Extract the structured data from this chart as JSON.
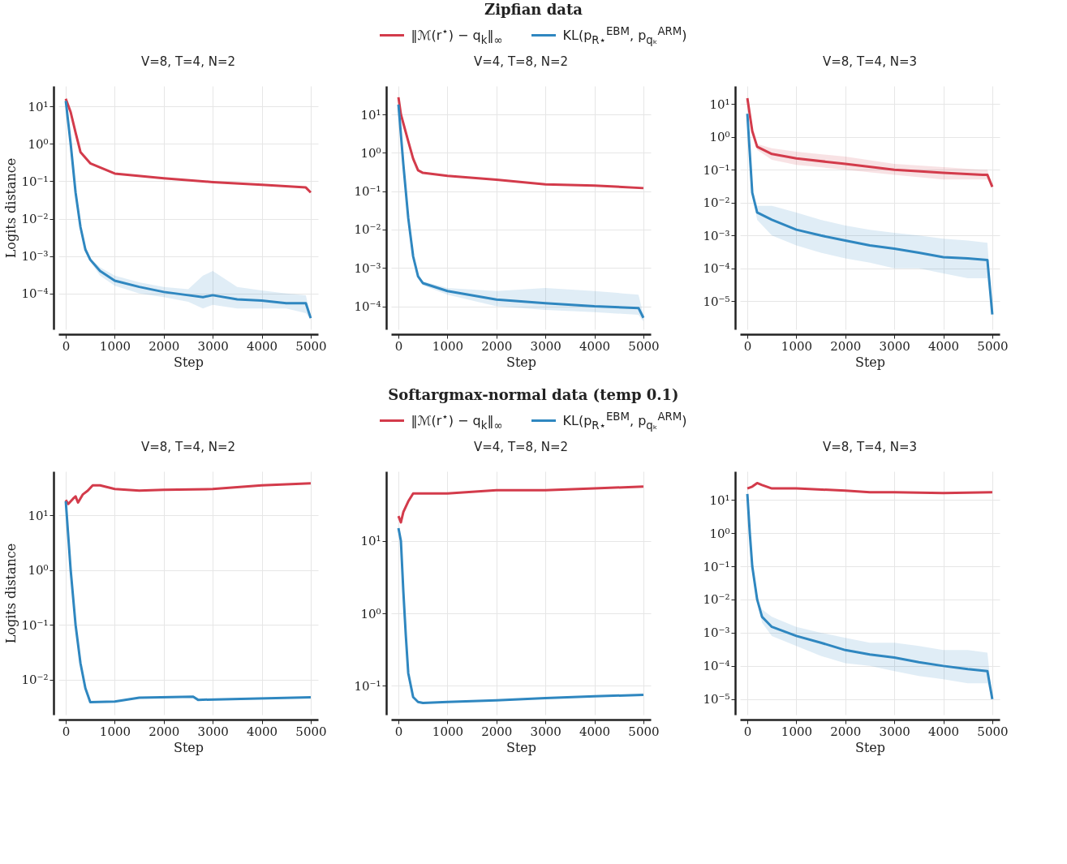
{
  "chart_data": [
    {
      "type": "line",
      "title": "V=8, T=4, N=2",
      "annotations": [
        "Zipfian data"
      ],
      "xlabel": "Step",
      "ylabel": "Logits distance",
      "log": "y",
      "grid": true,
      "legend": "top",
      "xlim": [
        -150,
        5150
      ],
      "xticks": [
        0,
        1000,
        2000,
        3000,
        4000,
        5000
      ],
      "ylim": [
        1.1e-05,
        35
      ],
      "yticks": [
        {
          "value": 10,
          "label": "10¹"
        },
        {
          "value": 1,
          "label": "10⁰"
        },
        {
          "value": 0.1,
          "label": "10⁻¹"
        },
        {
          "value": 0.01,
          "label": "10⁻²"
        },
        {
          "value": 0.001,
          "label": "10⁻³"
        },
        {
          "value": 0.0001,
          "label": "10⁻⁴"
        }
      ],
      "series": [
        {
          "name": "‖ℳ(r$^{⋆}$) − q$_{k}$‖$_{∞}$",
          "color": "#d33b4b",
          "x": [
            0,
            100,
            200,
            300,
            500,
            1000,
            2000,
            3000,
            4000,
            4900,
            5000
          ],
          "values": [
            16,
            7,
            2,
            0.6,
            0.3,
            0.16,
            0.12,
            0.095,
            0.08,
            0.068,
            0.05
          ]
        },
        {
          "name": "KL(p$_{R⋆}$$^{EBM}$, p$_{qₖ}$$^{ARM}$)",
          "color": "#2f87c0",
          "x": [
            0,
            100,
            200,
            300,
            400,
            500,
            700,
            1000,
            1500,
            2000,
            2500,
            2800,
            3000,
            3500,
            4000,
            4500,
            4900,
            5000
          ],
          "values": [
            14,
            1,
            0.05,
            0.006,
            0.0015,
            0.0008,
            0.0004,
            0.00022,
            0.00015,
            0.00011,
            9e-05,
            8e-05,
            9e-05,
            7e-05,
            6.5e-05,
            5.5e-05,
            5.5e-05,
            2.2e-05
          ],
          "lower": [
            14,
            1,
            0.05,
            0.006,
            0.0015,
            0.0007,
            0.0003,
            0.00016,
            0.0001,
            8e-05,
            6e-05,
            4e-05,
            5e-05,
            4e-05,
            4e-05,
            4e-05,
            3e-05,
            2e-05
          ],
          "upper": [
            14,
            1,
            0.05,
            0.006,
            0.0015,
            0.0009,
            0.0005,
            0.0003,
            0.0002,
            0.00015,
            0.00013,
            0.0003,
            0.0004,
            0.00015,
            0.00012,
            0.0001,
            9e-05,
            2.5e-05
          ]
        }
      ]
    },
    {
      "type": "line",
      "title": "V=4, T=8, N=2",
      "xlabel": "Step",
      "log": "y",
      "grid": true,
      "xlim": [
        -150,
        5150
      ],
      "xticks": [
        0,
        1000,
        2000,
        3000,
        4000,
        5000
      ],
      "ylim": [
        2.5e-05,
        55
      ],
      "yticks": [
        {
          "value": 10,
          "label": "10¹"
        },
        {
          "value": 1,
          "label": "10⁰"
        },
        {
          "value": 0.1,
          "label": "10⁻¹"
        },
        {
          "value": 0.01,
          "label": "10⁻²"
        },
        {
          "value": 0.001,
          "label": "10⁻³"
        },
        {
          "value": 0.0001,
          "label": "10⁻⁴"
        }
      ],
      "series": [
        {
          "color": "#d33b4b",
          "x": [
            0,
            50,
            200,
            300,
            400,
            500,
            1000,
            2000,
            3000,
            4000,
            5000
          ],
          "values": [
            28,
            10,
            2,
            0.7,
            0.35,
            0.3,
            0.25,
            0.2,
            0.15,
            0.14,
            0.12
          ]
        },
        {
          "color": "#2f87c0",
          "x": [
            0,
            100,
            200,
            300,
            400,
            500,
            1000,
            2000,
            3000,
            4000,
            4900,
            5000
          ],
          "values": [
            18,
            0.5,
            0.02,
            0.002,
            0.0006,
            0.0004,
            0.00025,
            0.00015,
            0.00012,
            0.0001,
            9e-05,
            5e-05
          ],
          "lower": [
            18,
            0.5,
            0.02,
            0.002,
            0.0006,
            0.00035,
            0.0002,
            0.0001,
            8e-05,
            7e-05,
            6e-05,
            4e-05
          ],
          "upper": [
            18,
            0.5,
            0.02,
            0.002,
            0.0006,
            0.00045,
            0.0003,
            0.00025,
            0.0003,
            0.00025,
            0.0002,
            6e-05
          ]
        }
      ]
    },
    {
      "type": "line",
      "title": "V=8, T=4, N=3",
      "xlabel": "Step",
      "log": "y",
      "grid": true,
      "xlim": [
        -150,
        5150
      ],
      "xticks": [
        0,
        1000,
        2000,
        3000,
        4000,
        5000
      ],
      "ylim": [
        1.4e-06,
        35
      ],
      "yticks": [
        {
          "value": 10,
          "label": "10¹"
        },
        {
          "value": 1,
          "label": "10⁰"
        },
        {
          "value": 0.1,
          "label": "10⁻¹"
        },
        {
          "value": 0.01,
          "label": "10⁻²"
        },
        {
          "value": 0.001,
          "label": "10⁻³"
        },
        {
          "value": 0.0001,
          "label": "10⁻⁴"
        },
        {
          "value": 1e-05,
          "label": "10⁻⁵"
        }
      ],
      "series": [
        {
          "color": "#d33b4b",
          "x": [
            0,
            100,
            200,
            500,
            1000,
            2000,
            3000,
            4000,
            4800,
            4900,
            5000
          ],
          "values": [
            15,
            1.5,
            0.5,
            0.3,
            0.22,
            0.15,
            0.1,
            0.08,
            0.07,
            0.07,
            0.03
          ],
          "lower": [
            15,
            1.5,
            0.4,
            0.2,
            0.14,
            0.1,
            0.07,
            0.05,
            0.05,
            0.05,
            0.03
          ],
          "upper": [
            15,
            1.5,
            0.6,
            0.45,
            0.35,
            0.25,
            0.15,
            0.12,
            0.1,
            0.1,
            0.03
          ]
        },
        {
          "color": "#2f87c0",
          "x": [
            0,
            100,
            200,
            500,
            1000,
            1500,
            2000,
            2500,
            3000,
            3500,
            4000,
            4500,
            4900,
            5000
          ],
          "values": [
            5,
            0.02,
            0.005,
            0.003,
            0.0015,
            0.001,
            0.0007,
            0.0005,
            0.0004,
            0.0003,
            0.00022,
            0.0002,
            0.00018,
            4e-06
          ],
          "lower": [
            5,
            0.02,
            0.003,
            0.001,
            0.0005,
            0.0003,
            0.0002,
            0.00015,
            0.0001,
            0.0001,
            7e-05,
            5e-05,
            5e-05,
            4e-06
          ],
          "upper": [
            5,
            0.02,
            0.008,
            0.008,
            0.005,
            0.003,
            0.002,
            0.0015,
            0.0012,
            0.001,
            0.0008,
            0.0007,
            0.0006,
            4e-06
          ]
        }
      ]
    },
    {
      "type": "line",
      "title": "V=8, T=4, N=2",
      "annotations": [
        "Softargmax-normal data (temp 0.1)"
      ],
      "xlabel": "Step",
      "ylabel": "Logits distance",
      "log": "y",
      "grid": true,
      "legend": "top",
      "xlim": [
        -150,
        5150
      ],
      "xticks": [
        0,
        1000,
        2000,
        3000,
        4000,
        5000
      ],
      "ylim": [
        0.0023,
        63
      ],
      "yticks": [
        {
          "value": 10,
          "label": "10¹"
        },
        {
          "value": 1,
          "label": "10⁰"
        },
        {
          "value": 0.1,
          "label": "10⁻¹"
        },
        {
          "value": 0.01,
          "label": "10⁻²"
        }
      ],
      "series": [
        {
          "name": "‖ℳ(r$^{⋆}$) − q$_{k}$‖$_{∞}$",
          "color": "#d33b4b",
          "x": [
            0,
            50,
            150,
            200,
            250,
            350,
            450,
            550,
            700,
            1000,
            1500,
            2000,
            3000,
            4000,
            5000
          ],
          "values": [
            19,
            16,
            20,
            22,
            17,
            24,
            28,
            35,
            35,
            30,
            28,
            29,
            30,
            35,
            38
          ]
        },
        {
          "name": "KL(p$_{R⋆}$$^{EBM}$, p$_{qₖ}$$^{ARM}$)",
          "color": "#2f87c0",
          "x": [
            0,
            100,
            200,
            300,
            400,
            500,
            1000,
            1500,
            2600,
            2700,
            5000
          ],
          "values": [
            18,
            1,
            0.1,
            0.02,
            0.007,
            0.0039,
            0.004,
            0.0047,
            0.0049,
            0.0043,
            0.0048
          ]
        }
      ]
    },
    {
      "type": "line",
      "title": "V=4, T=8, N=2",
      "xlabel": "Step",
      "log": "y",
      "grid": true,
      "xlim": [
        -150,
        5150
      ],
      "xticks": [
        0,
        1000,
        2000,
        3000,
        4000,
        5000
      ],
      "ylim": [
        0.04,
        91
      ],
      "yticks": [
        {
          "value": 10,
          "label": "10¹"
        },
        {
          "value": 1,
          "label": "10⁰"
        },
        {
          "value": 0.1,
          "label": "10⁻¹"
        }
      ],
      "series": [
        {
          "color": "#d33b4b",
          "x": [
            0,
            50,
            100,
            200,
            300,
            500,
            1000,
            2000,
            3000,
            4000,
            5000
          ],
          "values": [
            22,
            18,
            25,
            35,
            45,
            45,
            45,
            50,
            50,
            53,
            56
          ]
        },
        {
          "color": "#2f87c0",
          "x": [
            0,
            50,
            100,
            150,
            200,
            300,
            400,
            500,
            1000,
            2000,
            3000,
            4000,
            5000
          ],
          "values": [
            15,
            10,
            2,
            0.5,
            0.15,
            0.07,
            0.06,
            0.058,
            0.06,
            0.063,
            0.068,
            0.072,
            0.075
          ]
        }
      ]
    },
    {
      "type": "line",
      "title": "V=8, T=4, N=3",
      "xlabel": "Step",
      "log": "y",
      "grid": true,
      "xlim": [
        -150,
        5150
      ],
      "xticks": [
        0,
        1000,
        2000,
        3000,
        4000,
        5000
      ],
      "ylim": [
        3.4e-06,
        72
      ],
      "yticks": [
        {
          "value": 10,
          "label": "10¹"
        },
        {
          "value": 1,
          "label": "10⁰"
        },
        {
          "value": 0.1,
          "label": "10⁻¹"
        },
        {
          "value": 0.01,
          "label": "10⁻²"
        },
        {
          "value": 0.001,
          "label": "10⁻³"
        },
        {
          "value": 0.0001,
          "label": "10⁻⁴"
        },
        {
          "value": 1e-05,
          "label": "10⁻⁵"
        }
      ],
      "series": [
        {
          "color": "#d33b4b",
          "x": [
            0,
            100,
            200,
            300,
            500,
            1000,
            2000,
            2500,
            3000,
            4000,
            5000
          ],
          "values": [
            22,
            25,
            32,
            28,
            22,
            22,
            19,
            17,
            17,
            16,
            17
          ]
        },
        {
          "color": "#2f87c0",
          "x": [
            0,
            50,
            100,
            200,
            300,
            500,
            1000,
            1500,
            2000,
            2500,
            3000,
            3500,
            4000,
            4500,
            4900,
            5000
          ],
          "values": [
            15,
            1,
            0.1,
            0.01,
            0.003,
            0.0015,
            0.0008,
            0.0005,
            0.0003,
            0.00022,
            0.00018,
            0.00013,
            0.0001,
            8e-05,
            7e-05,
            1e-05
          ],
          "lower": [
            15,
            1,
            0.1,
            0.01,
            0.002,
            0.0008,
            0.0004,
            0.0002,
            0.00012,
            0.0001,
            7e-05,
            5e-05,
            4e-05,
            3e-05,
            3e-05,
            1e-05
          ],
          "upper": [
            15,
            1,
            0.1,
            0.01,
            0.005,
            0.003,
            0.0015,
            0.001,
            0.0007,
            0.0005,
            0.0005,
            0.0004,
            0.0003,
            0.0003,
            0.00025,
            1e-05
          ]
        }
      ]
    }
  ]
}
